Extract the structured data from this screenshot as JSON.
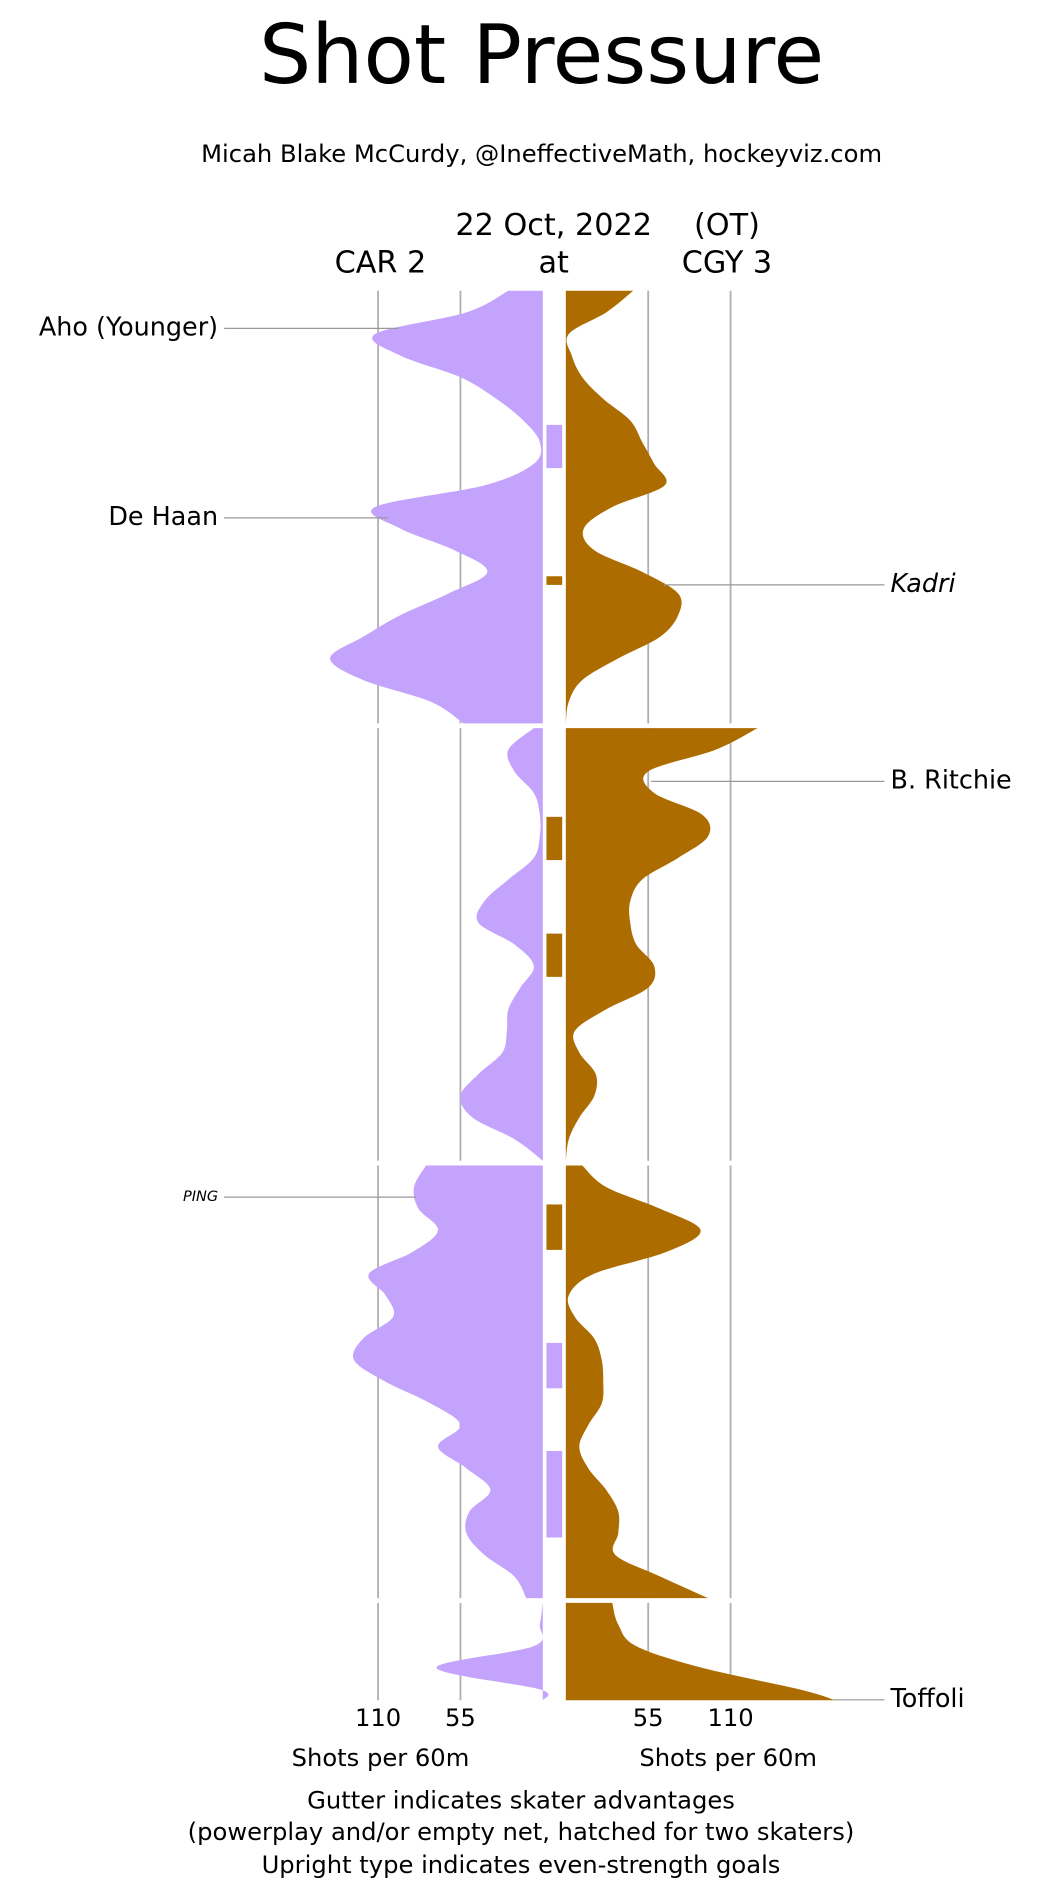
{
  "chart_data": {
    "type": "shot-pressure",
    "title": "Shot Pressure",
    "subtitle": "Micah Blake McCurdy, @IneffectiveMath, hockeyviz.com",
    "date": "22 Oct, 2022",
    "note": "(OT)",
    "connector": "at",
    "value_label": "Shots per 60m",
    "vlim": [
      0,
      180
    ],
    "vticks": [
      55,
      110
    ],
    "periods": [
      [
        0,
        20
      ],
      [
        20,
        40
      ],
      [
        40,
        60
      ],
      [
        60,
        64.5
      ]
    ],
    "footnotes": [
      "Gutter indicates skater advantages",
      "(powerplay and/or empty net, hatched for two skaters)",
      "Upright type indicates even-strength goals"
    ],
    "x": [
      0,
      1,
      2,
      3,
      4,
      5,
      6,
      7,
      8,
      9,
      10,
      11,
      12,
      13,
      14,
      15,
      16,
      17,
      18,
      19,
      20,
      20,
      20,
      21,
      22,
      23,
      24,
      25,
      26,
      27,
      28,
      29,
      30,
      31,
      32,
      33,
      34,
      35,
      36,
      37,
      38,
      39,
      40,
      40,
      40,
      41,
      42,
      43,
      44,
      45,
      46,
      47,
      48,
      49,
      50,
      51,
      52,
      53,
      54,
      55,
      56,
      57,
      58,
      59,
      60,
      60,
      60,
      61,
      62,
      63,
      64,
      64.5
    ],
    "series": [
      {
        "name": "CAR 2",
        "color": "#c4a3fc",
        "values": [
          23,
          51,
          112,
          95,
          55,
          31,
          13,
          2,
          6,
          39,
          112,
          95,
          59,
          37,
          63,
          95,
          120,
          142,
          120,
          75,
          53,
          null,
          6,
          23,
          19,
          6,
          2,
          2,
          6,
          23,
          39,
          43,
          19,
          6,
          15,
          23,
          24,
          27,
          43,
          55,
          47,
          19,
          0,
          null,
          78,
          86,
          83,
          70,
          87,
          116,
          105,
          100,
          120,
          126,
          105,
          75,
          55,
          70,
          51,
          35,
          49,
          51,
          39,
          19,
          11,
          null,
          0,
          2,
          6,
          71,
          2,
          0
        ],
        "advantages": [
          [
            6.2,
            8.2
          ],
          [
            48.2,
            50.3
          ],
          [
            53.2,
            57.2
          ]
        ],
        "goals": [
          {
            "label": "Aho (Younger)",
            "time": 1.74,
            "italic": false
          },
          {
            "label": "De Haan",
            "time": 10.5,
            "italic": false
          },
          {
            "label": "PING",
            "time": 41.46,
            "italic": true,
            "small": true
          }
        ]
      },
      {
        "name": "CGY 3",
        "color": "#ad6c00",
        "values": [
          45,
          27,
          2,
          4,
          11,
          25,
          43,
          51,
          59,
          66,
          31,
          12,
          19,
          51,
          75,
          75,
          63,
          35,
          11,
          2,
          0,
          null,
          128,
          100,
          55,
          59,
          91,
          95,
          75,
          51,
          43,
          43,
          47,
          59,
          55,
          27,
          6,
          9,
          20,
          19,
          9,
          2,
          0,
          null,
          11,
          27,
          63,
          90,
          67,
          19,
          2,
          6,
          19,
          24,
          25,
          24,
          15,
          9,
          15,
          27,
          35,
          35,
          33,
          63,
          95,
          null,
          31,
          35,
          47,
          91,
          156,
          180
        ],
        "advantages": [
          [
            13.2,
            13.6
          ],
          [
            24.1,
            26.1
          ],
          [
            29.5,
            31.5
          ],
          [
            41.8,
            43.9
          ]
        ],
        "goals": [
          {
            "label": "Kadri",
            "time": 13.6,
            "italic": true
          },
          {
            "label": "B. Ritchie",
            "time": 22.46,
            "italic": false
          },
          {
            "label": "Toffoli",
            "time": 64.48,
            "italic": false
          }
        ]
      }
    ]
  }
}
